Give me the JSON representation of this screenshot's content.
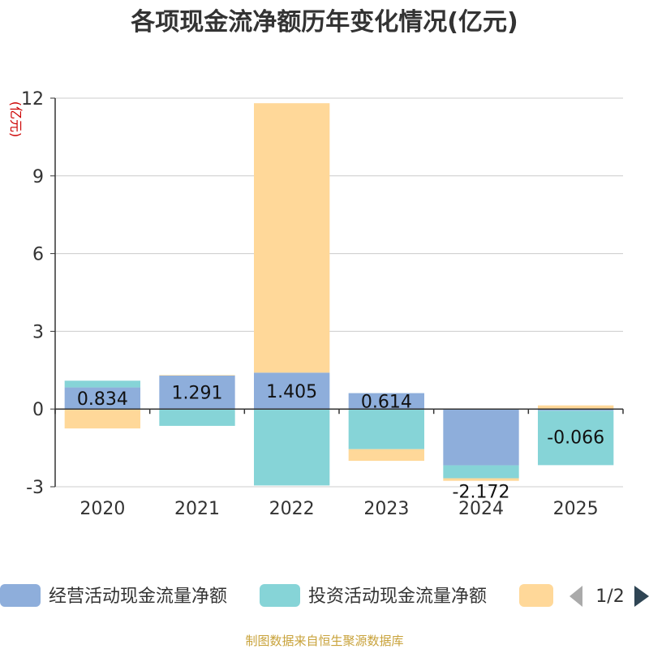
{
  "chart_data": {
    "type": "bar",
    "stacked": true,
    "title": "各项现金流净额历年变化情况(亿元)",
    "ylabel": "(亿元)",
    "xlabel": "",
    "categories": [
      "2020",
      "2021",
      "2022",
      "2023",
      "2024",
      "2025"
    ],
    "ylim": [
      -3,
      12
    ],
    "yticks": [
      -3,
      0,
      3,
      6,
      9,
      12
    ],
    "series": [
      {
        "name": "经营活动现金流量净额",
        "color": "#8eaedb",
        "values": [
          0.834,
          1.291,
          1.405,
          0.614,
          -2.172,
          -0.066
        ]
      },
      {
        "name": "投资活动现金流量净额",
        "color": "#86d4d7",
        "values": [
          0.26,
          -0.65,
          -2.95,
          -1.55,
          -0.5,
          -2.1
        ]
      },
      {
        "name": "",
        "color": "#ffd899",
        "values": [
          -0.75,
          0.02,
          10.4,
          -0.45,
          -0.1,
          0.14
        ]
      }
    ],
    "data_labels": [
      "0.834",
      "1.291",
      "1.405",
      "0.614",
      "-2.172",
      "-0.066"
    ],
    "grid": true,
    "legend_position": "bottom"
  },
  "legend": {
    "pager": "1/2"
  },
  "footer": {
    "source": "制图数据来自恒生聚源数据库"
  }
}
